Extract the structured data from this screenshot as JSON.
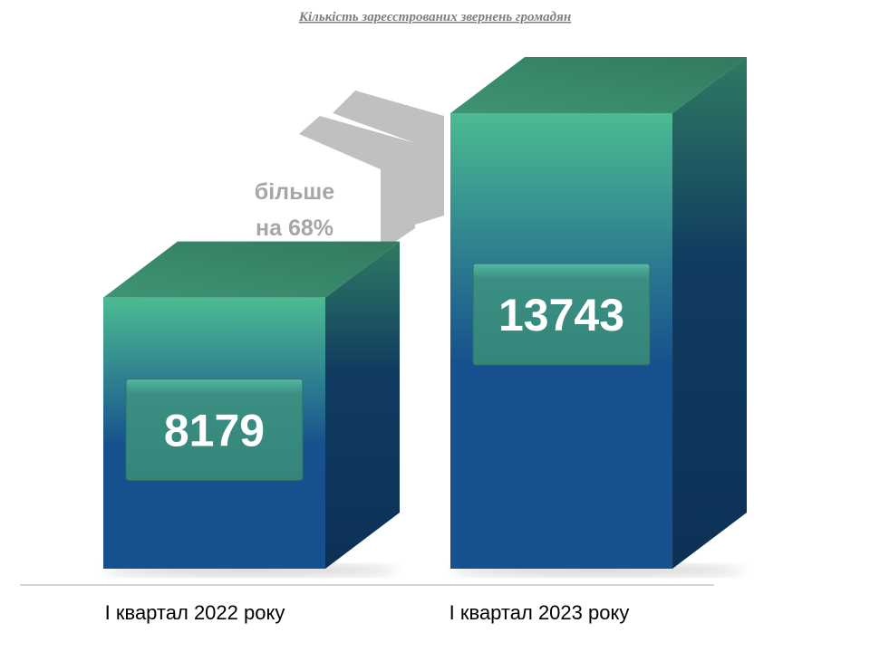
{
  "chart_data": {
    "type": "bar",
    "style": "3d-box",
    "title": "Кількість зареєстрованих звернень громадян",
    "categories": [
      "І квартал 2022 року",
      "І квартал 2023 року"
    ],
    "values": [
      8179,
      13743
    ],
    "value_labels": [
      "8179",
      "13743"
    ],
    "ylim": [
      0,
      15000
    ],
    "grid": false,
    "legend": "none",
    "annotation": {
      "lines": [
        "більше",
        "на 68%"
      ],
      "icon": "double-chevron-up-icon"
    }
  },
  "colors": {
    "bar_top": "#3e8a6e",
    "bar_front_top": "#4cbb92",
    "bar_front_bottom": "#16508e",
    "bar_side": "#0f3a62",
    "label_box": "#3a8f82",
    "arrow": "#c0c0c0",
    "annotation_text": "#a6a6a6",
    "title": "#7f7f7f"
  }
}
